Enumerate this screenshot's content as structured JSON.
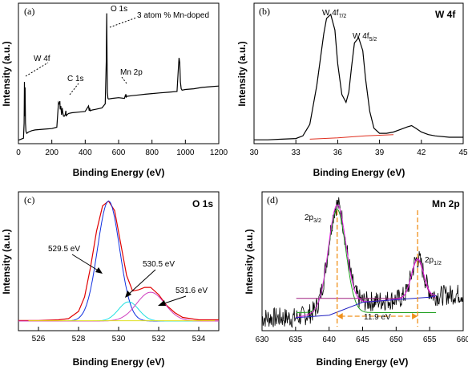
{
  "chart_data": [
    {
      "type": "line",
      "panel": "(a)",
      "title": "",
      "xlabel": "Binding Energy (eV)",
      "ylabel": "Intensity (a.u.)",
      "xlim": [
        0,
        1200
      ],
      "xticks": [
        0,
        200,
        400,
        600,
        800,
        1000,
        1200
      ],
      "y_ticks_shown": false,
      "grid": false,
      "series": [
        {
          "x": [
            0,
            30,
            34,
            36,
            38,
            40,
            42,
            45,
            50,
            60,
            80,
            100,
            150,
            200,
            230,
            240,
            244,
            246,
            248,
            250,
            254,
            258,
            262,
            266,
            270,
            275,
            280,
            284,
            286,
            290,
            300,
            320,
            360,
            400,
            420,
            424,
            426,
            430,
            440,
            460,
            480,
            500,
            520,
            526,
            529,
            531,
            533,
            536,
            540,
            560,
            600,
            635,
            640,
            642,
            644,
            646,
            650,
            680,
            720,
            760,
            800,
            850,
            900,
            950,
            958,
            962,
            966,
            970,
            975,
            980,
            1000,
            1050,
            1100,
            1150,
            1200
          ],
          "y": [
            5,
            8,
            30,
            90,
            40,
            82,
            30,
            18,
            15,
            17,
            19,
            20,
            21,
            22,
            24,
            60,
            58,
            59,
            62,
            50,
            55,
            42,
            52,
            45,
            40,
            40,
            42,
            48,
            40,
            42,
            44,
            45,
            46,
            47,
            55,
            48,
            52,
            48,
            49,
            50,
            51,
            52,
            58,
            120,
            190,
            125,
            75,
            66,
            65,
            66,
            67,
            66,
            70,
            68,
            72,
            68,
            69,
            70,
            71,
            72,
            73,
            74,
            75,
            76,
            110,
            125,
            118,
            90,
            80,
            78,
            79,
            80,
            82,
            83,
            84
          ]
        }
      ],
      "annotations": [
        "W 4f",
        "C 1s",
        "O 1s",
        "3 atom % Mn-doped",
        "Mn 2p"
      ]
    },
    {
      "type": "line",
      "panel": "(b)",
      "title": "W 4f",
      "xlabel": "Binding Energy (eV)",
      "ylabel": "Intensity (a.u.)",
      "xlim": [
        30,
        45
      ],
      "xticks": [
        30,
        33,
        36,
        39,
        42,
        45
      ],
      "y_ticks_shown": false,
      "grid": false,
      "series": [
        {
          "name": "raw",
          "color": "#000000",
          "x": [
            30,
            31,
            32,
            33,
            33.5,
            34,
            34.5,
            35,
            35.2,
            35.5,
            35.8,
            36,
            36.3,
            36.6,
            36.8,
            37,
            37.2,
            37.5,
            37.8,
            38,
            38.3,
            38.6,
            39,
            39.5,
            40,
            40.5,
            41,
            41.3,
            41.6,
            42,
            42.5,
            43,
            44,
            45
          ],
          "y": [
            3,
            3,
            3.5,
            4,
            6,
            15,
            45,
            85,
            97,
            100,
            88,
            62,
            38,
            32,
            40,
            60,
            78,
            82,
            72,
            50,
            25,
            12,
            8,
            8,
            9,
            11,
            13,
            14,
            12,
            9,
            7,
            6,
            5,
            5
          ]
        },
        {
          "name": "background",
          "color": "#e03020",
          "x": [
            34,
            36,
            38,
            40
          ],
          "y": [
            3.5,
            4.5,
            6,
            7
          ]
        }
      ],
      "annotations": [
        "W 4f7/2",
        "W 4f5/2"
      ]
    },
    {
      "type": "line",
      "panel": "(c)",
      "title": "O 1s",
      "xlabel": "Binding Energy (eV)",
      "ylabel": "Intensity (a.u.)",
      "xlim": [
        525,
        535
      ],
      "xticks": [
        526,
        528,
        530,
        532,
        534
      ],
      "y_ticks_shown": false,
      "grid": false,
      "series": [
        {
          "name": "raw",
          "color": "#e00000",
          "x": [
            525,
            526,
            527,
            527.5,
            528,
            528.3,
            528.6,
            528.9,
            529.2,
            529.5,
            529.8,
            530.1,
            530.4,
            530.7,
            531,
            531.3,
            531.6,
            532,
            532.4,
            532.8,
            533.2,
            533.6,
            534,
            535
          ],
          "y": [
            0.5,
            0.5,
            1,
            2,
            8,
            20,
            45,
            75,
            96,
            100,
            92,
            65,
            38,
            25,
            26,
            28,
            28,
            22,
            13,
            7,
            3,
            2,
            1,
            1
          ]
        },
        {
          "name": "fit 529.5 eV",
          "color": "#1030e0",
          "center": 529.5,
          "height": 100,
          "width": 0.55
        },
        {
          "name": "fit 530.5 eV",
          "color": "#20e0e0",
          "center": 530.5,
          "height": 16,
          "width": 0.5
        },
        {
          "name": "fit 531.6 eV",
          "color": "#d040c0",
          "center": 531.6,
          "height": 24,
          "width": 0.7
        },
        {
          "name": "baseline",
          "color": "#e0e020",
          "x": [
            525.5,
            534.8
          ],
          "y": [
            0.3,
            0.3
          ]
        }
      ],
      "annotations": [
        "529.5 eV",
        "530.5 eV",
        "531.6 eV"
      ]
    },
    {
      "type": "line",
      "panel": "(d)",
      "title": "Mn 2p",
      "xlabel": "Binding Energy (eV)",
      "ylabel": "Intensity (a.u.)",
      "xlim": [
        630,
        660
      ],
      "xticks": [
        630,
        635,
        640,
        645,
        650,
        655,
        660
      ],
      "y_ticks_shown": false,
      "grid": false,
      "series": [
        {
          "name": "fit 2p3/2",
          "color": "#20a020",
          "center": 641.2,
          "height": 80,
          "width": 1.3,
          "base": 14
        },
        {
          "name": "fit 2p1/2",
          "color": "#a02080",
          "center": 653.2,
          "height": 30,
          "width": 0.9,
          "base": 25
        },
        {
          "name": "envelope",
          "color": "#e020e0"
        },
        {
          "name": "background",
          "color": "#2020c0",
          "x": [
            635,
            640,
            645,
            650,
            655,
            656
          ],
          "y": [
            10,
            12,
            22,
            24,
            26,
            27
          ]
        }
      ],
      "annotations": [
        "2p3/2",
        "2p1/2",
        "11.9 eV"
      ],
      "peak_markers": [
        641.2,
        653.2
      ]
    }
  ],
  "text": {
    "a": {
      "label": "(a)",
      "xlabel": "Binding Energy (eV)",
      "ylabel": "Intensity (a.u.)",
      "ann_w4f": "W 4f",
      "ann_c1s": "C 1s",
      "ann_o1s": "O 1s",
      "ann_mn": "3 atom % Mn-doped",
      "ann_mn2p": "Mn 2p"
    },
    "b": {
      "label": "(b)",
      "title": "W 4f",
      "xlabel": "Binding Energy (eV)",
      "ylabel": "Intensity (a.u.)"
    },
    "c": {
      "label": "(c)",
      "title": "O 1s",
      "xlabel": "Binding Energy (eV)",
      "ylabel": "Intensity (a.u.)",
      "ann1": "529.5 eV",
      "ann2": "530.5 eV",
      "ann3": "531.6 eV"
    },
    "d": {
      "label": "(d)",
      "title": "Mn 2p",
      "xlabel": "Binding Energy (eV)",
      "ylabel": "Intensity (a.u.)",
      "ann_gap": "11.9 eV"
    }
  }
}
